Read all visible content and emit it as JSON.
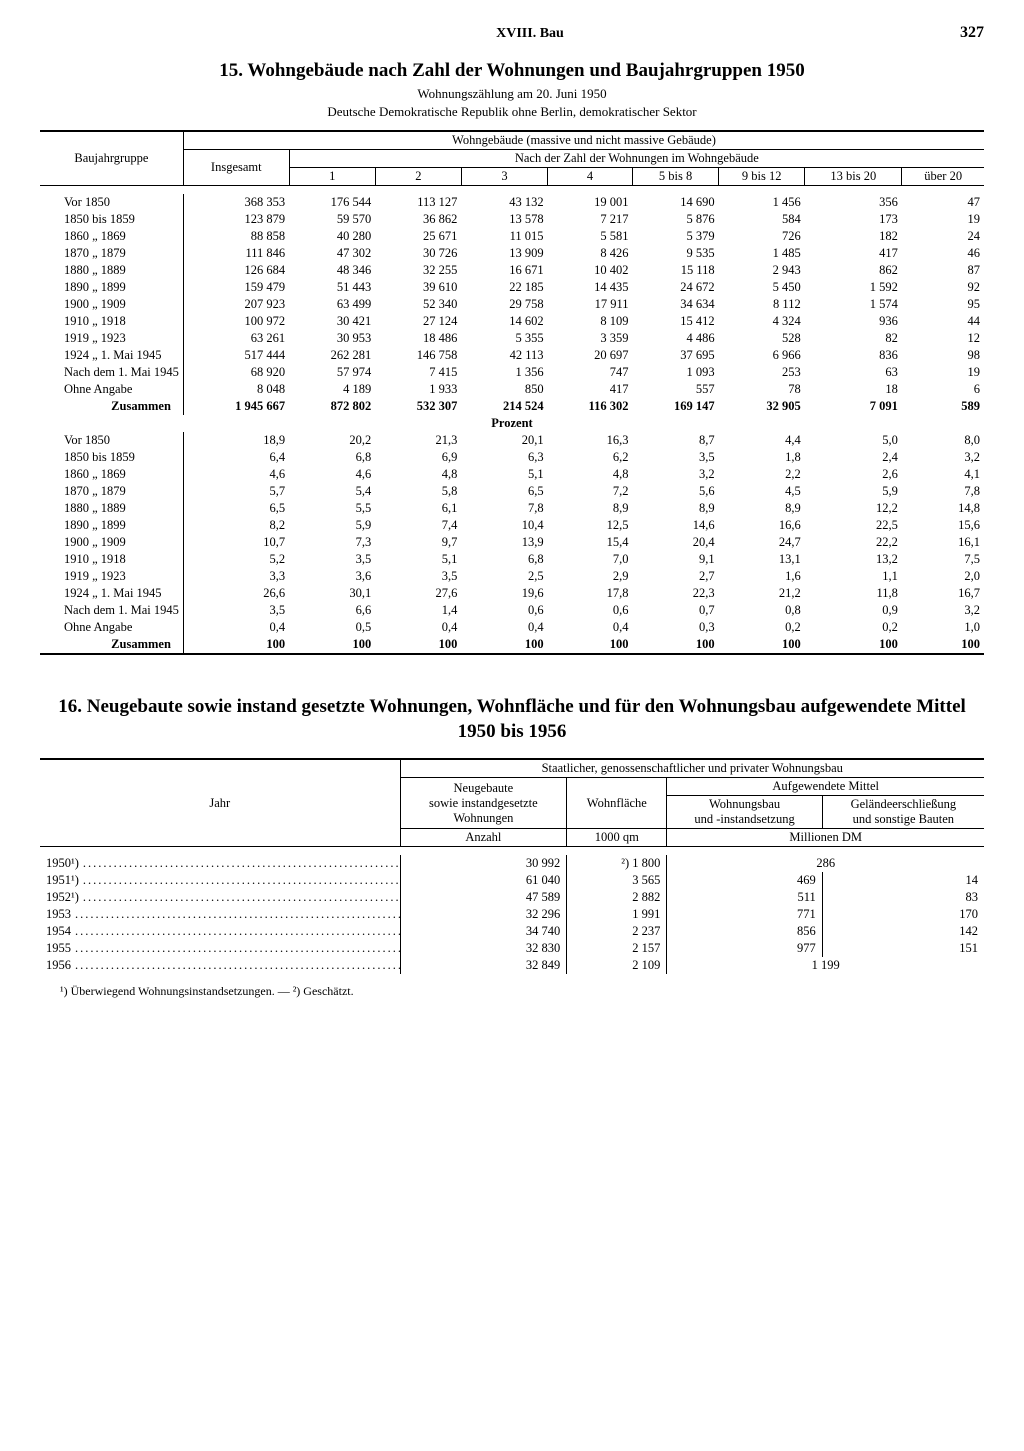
{
  "header": {
    "chapter": "XVIII. Bau",
    "page": "327"
  },
  "table15": {
    "title": "15. Wohngebäude nach Zahl der Wohnungen und Baujahrgruppen 1950",
    "sub1": "Wohnungszählung am 20. Juni 1950",
    "sub2": "Deutsche Demokratische Republik ohne Berlin, demokratischer Sektor",
    "col_group_title": "Wohngebäude (massive und nicht massive Gebäude)",
    "sub_group_title": "Nach der Zahl der Wohnungen im Wohngebäude",
    "stub_head": "Baujahrgruppe",
    "total_head": "Insgesamt",
    "cols": [
      "1",
      "2",
      "3",
      "4",
      "5 bis 8",
      "9 bis 12",
      "13 bis 20",
      "über 20"
    ],
    "row_labels": [
      "Vor 1850",
      "1850 bis 1859",
      "1860  „  1869",
      "1870  „  1879",
      "1880  „  1889",
      "1890  „  1899",
      "1900  „  1909",
      "1910  „  1918",
      "1919  „  1923",
      "1924  „  1. Mai 1945",
      "Nach dem 1. Mai 1945",
      "Ohne Angabe"
    ],
    "sum_label": "Zusammen",
    "abs": [
      [
        "368 353",
        "176 544",
        "113 127",
        "43 132",
        "19 001",
        "14 690",
        "1 456",
        "356",
        "47"
      ],
      [
        "123 879",
        "59 570",
        "36 862",
        "13 578",
        "7 217",
        "5 876",
        "584",
        "173",
        "19"
      ],
      [
        "88 858",
        "40 280",
        "25 671",
        "11 015",
        "5 581",
        "5 379",
        "726",
        "182",
        "24"
      ],
      [
        "111 846",
        "47 302",
        "30 726",
        "13 909",
        "8 426",
        "9 535",
        "1 485",
        "417",
        "46"
      ],
      [
        "126 684",
        "48 346",
        "32 255",
        "16 671",
        "10 402",
        "15 118",
        "2 943",
        "862",
        "87"
      ],
      [
        "159 479",
        "51 443",
        "39 610",
        "22 185",
        "14 435",
        "24 672",
        "5 450",
        "1 592",
        "92"
      ],
      [
        "207 923",
        "63 499",
        "52 340",
        "29 758",
        "17 911",
        "34 634",
        "8 112",
        "1 574",
        "95"
      ],
      [
        "100 972",
        "30 421",
        "27 124",
        "14 602",
        "8 109",
        "15 412",
        "4 324",
        "936",
        "44"
      ],
      [
        "63 261",
        "30 953",
        "18 486",
        "5 355",
        "3 359",
        "4 486",
        "528",
        "82",
        "12"
      ],
      [
        "517 444",
        "262 281",
        "146 758",
        "42 113",
        "20 697",
        "37 695",
        "6 966",
        "836",
        "98"
      ],
      [
        "68 920",
        "57 974",
        "7 415",
        "1 356",
        "747",
        "1 093",
        "253",
        "63",
        "19"
      ],
      [
        "8 048",
        "4 189",
        "1 933",
        "850",
        "417",
        "557",
        "78",
        "18",
        "6"
      ]
    ],
    "abs_sum": [
      "1 945 667",
      "872 802",
      "532 307",
      "214 524",
      "116 302",
      "169 147",
      "32 905",
      "7 091",
      "589"
    ],
    "pct_label": "Prozent",
    "pct": [
      [
        "18,9",
        "20,2",
        "21,3",
        "20,1",
        "16,3",
        "8,7",
        "4,4",
        "5,0",
        "8,0"
      ],
      [
        "6,4",
        "6,8",
        "6,9",
        "6,3",
        "6,2",
        "3,5",
        "1,8",
        "2,4",
        "3,2"
      ],
      [
        "4,6",
        "4,6",
        "4,8",
        "5,1",
        "4,8",
        "3,2",
        "2,2",
        "2,6",
        "4,1"
      ],
      [
        "5,7",
        "5,4",
        "5,8",
        "6,5",
        "7,2",
        "5,6",
        "4,5",
        "5,9",
        "7,8"
      ],
      [
        "6,5",
        "5,5",
        "6,1",
        "7,8",
        "8,9",
        "8,9",
        "8,9",
        "12,2",
        "14,8"
      ],
      [
        "8,2",
        "5,9",
        "7,4",
        "10,4",
        "12,5",
        "14,6",
        "16,6",
        "22,5",
        "15,6"
      ],
      [
        "10,7",
        "7,3",
        "9,7",
        "13,9",
        "15,4",
        "20,4",
        "24,7",
        "22,2",
        "16,1"
      ],
      [
        "5,2",
        "3,5",
        "5,1",
        "6,8",
        "7,0",
        "9,1",
        "13,1",
        "13,2",
        "7,5"
      ],
      [
        "3,3",
        "3,6",
        "3,5",
        "2,5",
        "2,9",
        "2,7",
        "1,6",
        "1,1",
        "2,0"
      ],
      [
        "26,6",
        "30,1",
        "27,6",
        "19,6",
        "17,8",
        "22,3",
        "21,2",
        "11,8",
        "16,7"
      ],
      [
        "3,5",
        "6,6",
        "1,4",
        "0,6",
        "0,6",
        "0,7",
        "0,8",
        "0,9",
        "3,2"
      ],
      [
        "0,4",
        "0,5",
        "0,4",
        "0,4",
        "0,4",
        "0,3",
        "0,2",
        "0,2",
        "1,0"
      ]
    ],
    "pct_sum": [
      "100",
      "100",
      "100",
      "100",
      "100",
      "100",
      "100",
      "100",
      "100"
    ]
  },
  "table16": {
    "title": "16. Neugebaute sowie instand gesetzte Wohnungen, Wohnfläche und für den Wohnungsbau aufgewendete Mittel 1950 bis 1956",
    "group_title": "Staatlicher, genossenschaftlicher und privater Wohnungsbau",
    "stub_head": "Jahr",
    "col1_a": "Neugebaute",
    "col1_b": "sowie instandgesetzte",
    "col1_c": "Wohnungen",
    "col2": "Wohnfläche",
    "col34_group": "Aufgewendete Mittel",
    "col3_a": "Wohnungsbau",
    "col3_b": "und -instandsetzung",
    "col4_a": "Geländeerschließung",
    "col4_b": "und sonstige Bauten",
    "unit1": "Anzahl",
    "unit2": "1000 qm",
    "unit34": "Millionen DM",
    "rows": [
      {
        "y": "1950¹)",
        "c1": "30 992",
        "c2": "²) 1 800",
        "c3": "",
        "c4": "",
        "c34": "286"
      },
      {
        "y": "1951¹)",
        "c1": "61 040",
        "c2": "3 565",
        "c3": "469",
        "c4": "14"
      },
      {
        "y": "1952¹)",
        "c1": "47 589",
        "c2": "2 882",
        "c3": "511",
        "c4": "83"
      },
      {
        "y": "1953",
        "c1": "32 296",
        "c2": "1 991",
        "c3": "771",
        "c4": "170"
      },
      {
        "y": "1954",
        "c1": "34 740",
        "c2": "2 237",
        "c3": "856",
        "c4": "142"
      },
      {
        "y": "1955",
        "c1": "32 830",
        "c2": "2 157",
        "c3": "977",
        "c4": "151"
      },
      {
        "y": "1956",
        "c1": "32 849",
        "c2": "2 109",
        "c3": "",
        "c4": "",
        "c34": "1 199"
      }
    ],
    "footnote": "¹) Überwiegend Wohnungsinstandsetzungen. — ²) Geschätzt."
  }
}
